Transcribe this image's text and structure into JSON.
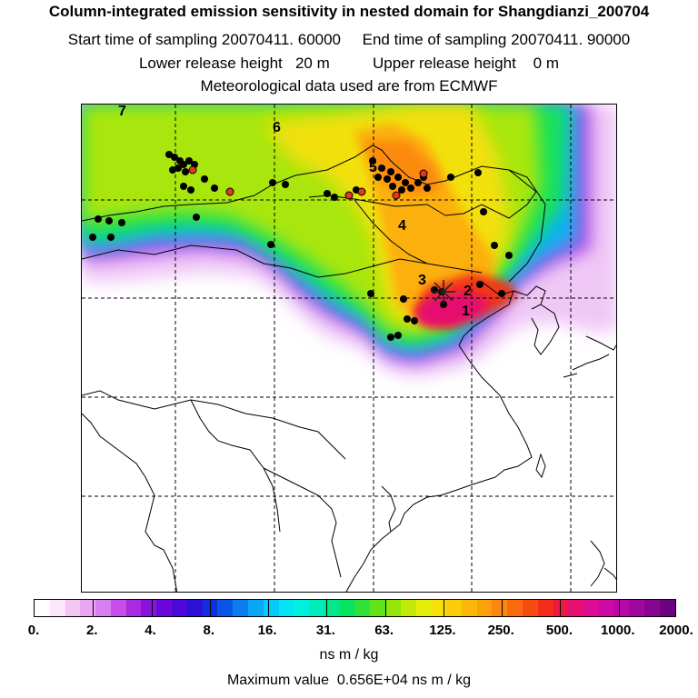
{
  "header": {
    "title": "Column-integrated emission sensitivity in nested domain for Shangdianzi_200704",
    "line2": "Start time of sampling 20070411. 60000     End time of sampling 20070411. 90000",
    "line3": "Lower release height   20 m          Upper release height    0 m",
    "line4": "Meteorological data used are from ECMWF"
  },
  "map": {
    "point_labels": [
      "7",
      "6",
      "5",
      "4",
      "3",
      "2",
      "1"
    ],
    "station_marker": "star-marker"
  },
  "colorbar": {
    "tick_labels": [
      "0.",
      "2.",
      "4.",
      "8.",
      "16.",
      "31.",
      "63.",
      "125.",
      "250.",
      "500.",
      "1000.",
      "2000."
    ],
    "units": "ns m / kg",
    "colors": [
      "#ffffff",
      "#fbe6fb",
      "#f3c6f6",
      "#eaa6f3",
      "#d77ff0",
      "#c54ee9",
      "#a82ae3",
      "#8a12df",
      "#6b06db",
      "#4b08d9",
      "#2b10d8",
      "#1030dc",
      "#0a55e6",
      "#0a7ef0",
      "#08a6f6",
      "#06c8f9",
      "#04e4f4",
      "#00f0e0",
      "#00ecb6",
      "#00e888",
      "#06e460",
      "#2ee23a",
      "#62e21a",
      "#96e60a",
      "#c2ea08",
      "#e4ec08",
      "#f6e008",
      "#fccd08",
      "#fcb80a",
      "#fca00c",
      "#fc860e",
      "#fa6a10",
      "#f64c12",
      "#f22e1a",
      "#ec1a40",
      "#e61070",
      "#dc0c94",
      "#cc0aa4",
      "#b808a8",
      "#a006a0",
      "#880494",
      "#6c0280"
    ]
  },
  "footer": {
    "max_value": "Maximum value  0.656E+04 ns m / kg"
  }
}
